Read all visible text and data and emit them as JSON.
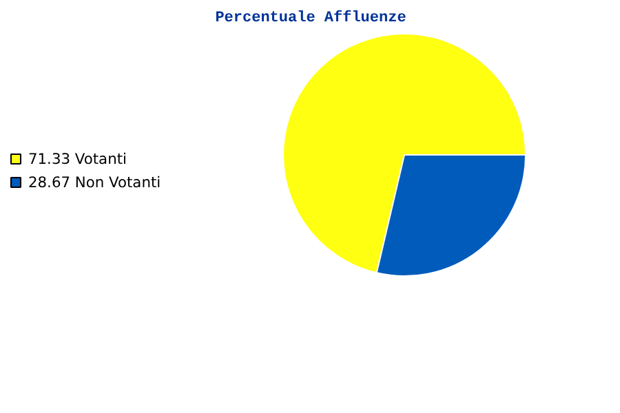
{
  "chart_data": {
    "type": "pie",
    "title": "Percentuale Affluenze",
    "categories": [
      "Votanti",
      "Non Votanti"
    ],
    "values": [
      71.33,
      28.67
    ],
    "value_labels": [
      "71.33",
      "28.67"
    ],
    "colors": [
      "#ffff11",
      "#005bbb"
    ],
    "legend": "left"
  }
}
